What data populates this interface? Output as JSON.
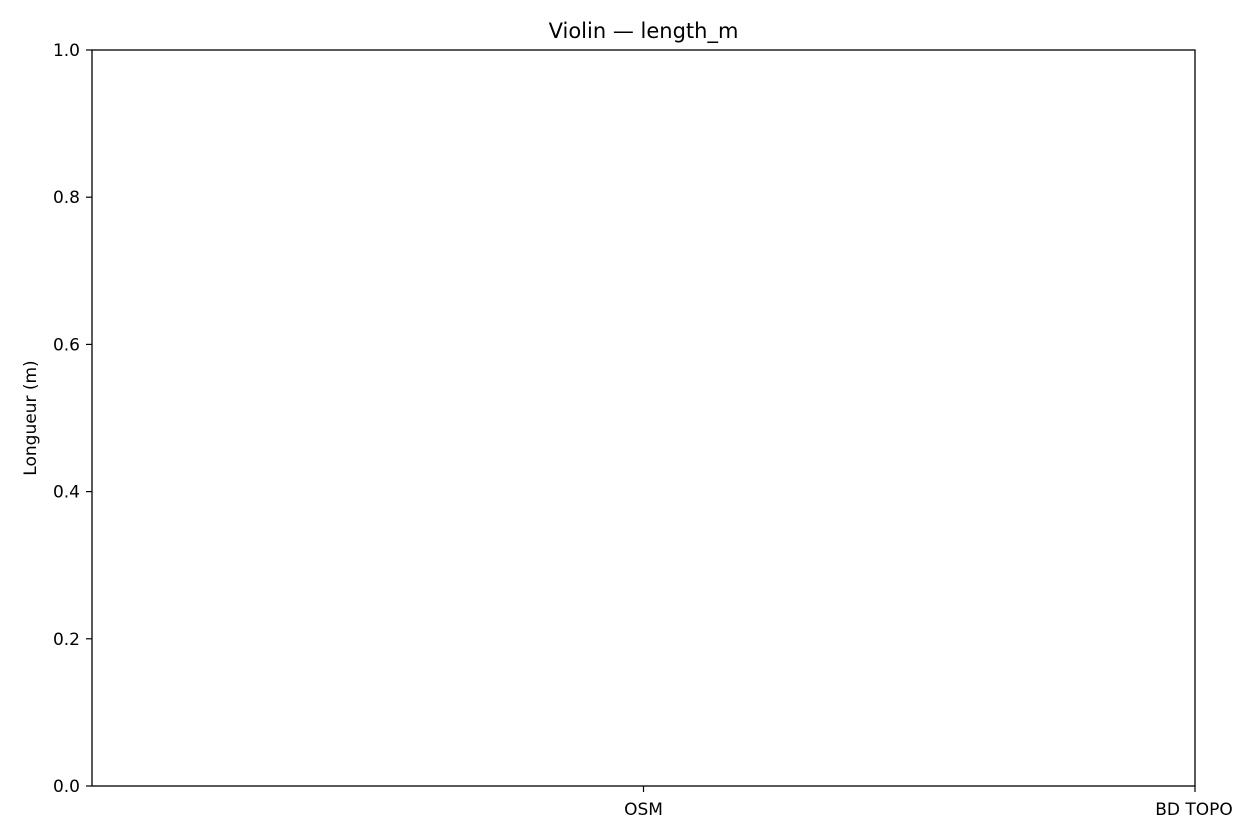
{
  "chart_data": {
    "type": "violin",
    "title": "Violin — length_m",
    "xlabel": "",
    "ylabel": "Longueur (m)",
    "categories": [
      "OSM",
      "BD TOPO"
    ],
    "series": [],
    "ylim": [
      0,
      1.0
    ],
    "yticks": [
      "0.0",
      "0.2",
      "0.4",
      "0.6",
      "0.8",
      "1.0"
    ],
    "grid": false
  }
}
